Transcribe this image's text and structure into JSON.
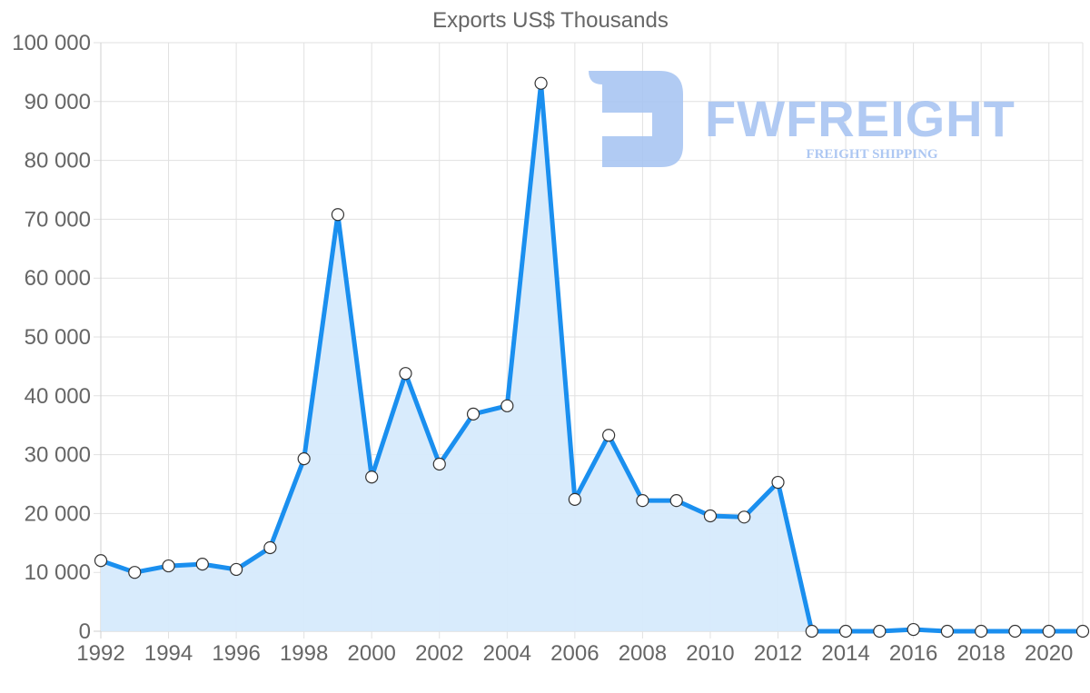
{
  "chart_data": {
    "type": "area",
    "title": "Exports US$ Thousands",
    "xlabel": "",
    "ylabel": "",
    "x": [
      1992,
      1993,
      1994,
      1995,
      1996,
      1997,
      1998,
      1999,
      2000,
      2001,
      2002,
      2003,
      2004,
      2005,
      2006,
      2007,
      2008,
      2009,
      2010,
      2011,
      2012,
      2013,
      2014,
      2015,
      2016,
      2017,
      2018,
      2019,
      2020,
      2021
    ],
    "series": [
      {
        "name": "Exports US$ Thousands",
        "color": "#1a8fef",
        "fill": "#d6eafc",
        "values": [
          12000,
          10000,
          11100,
          11400,
          10500,
          14200,
          29300,
          70800,
          26200,
          43800,
          28400,
          36900,
          38300,
          93100,
          22400,
          33300,
          22200,
          22200,
          19600,
          19400,
          25300,
          0,
          0,
          0,
          300,
          0,
          0,
          0,
          0,
          0
        ]
      }
    ],
    "ylim": [
      0,
      100000
    ],
    "yticks": [
      0,
      10000,
      20000,
      30000,
      40000,
      50000,
      60000,
      70000,
      80000,
      90000,
      100000
    ],
    "ytick_labels": [
      "0",
      "10 000",
      "20 000",
      "30 000",
      "40 000",
      "50 000",
      "60 000",
      "70 000",
      "80 000",
      "90 000",
      "100 000"
    ],
    "xtick_labels": [
      "1992",
      "1994",
      "1996",
      "1998",
      "2000",
      "2002",
      "2004",
      "2006",
      "2008",
      "2010",
      "2012",
      "2014",
      "2016",
      "2018",
      "2020"
    ],
    "grid": true,
    "legend": "none"
  },
  "watermark": {
    "brand": "FWFREIGHT",
    "tagline": "FREIGHT SHIPPING",
    "color": "#a9c5f2"
  }
}
